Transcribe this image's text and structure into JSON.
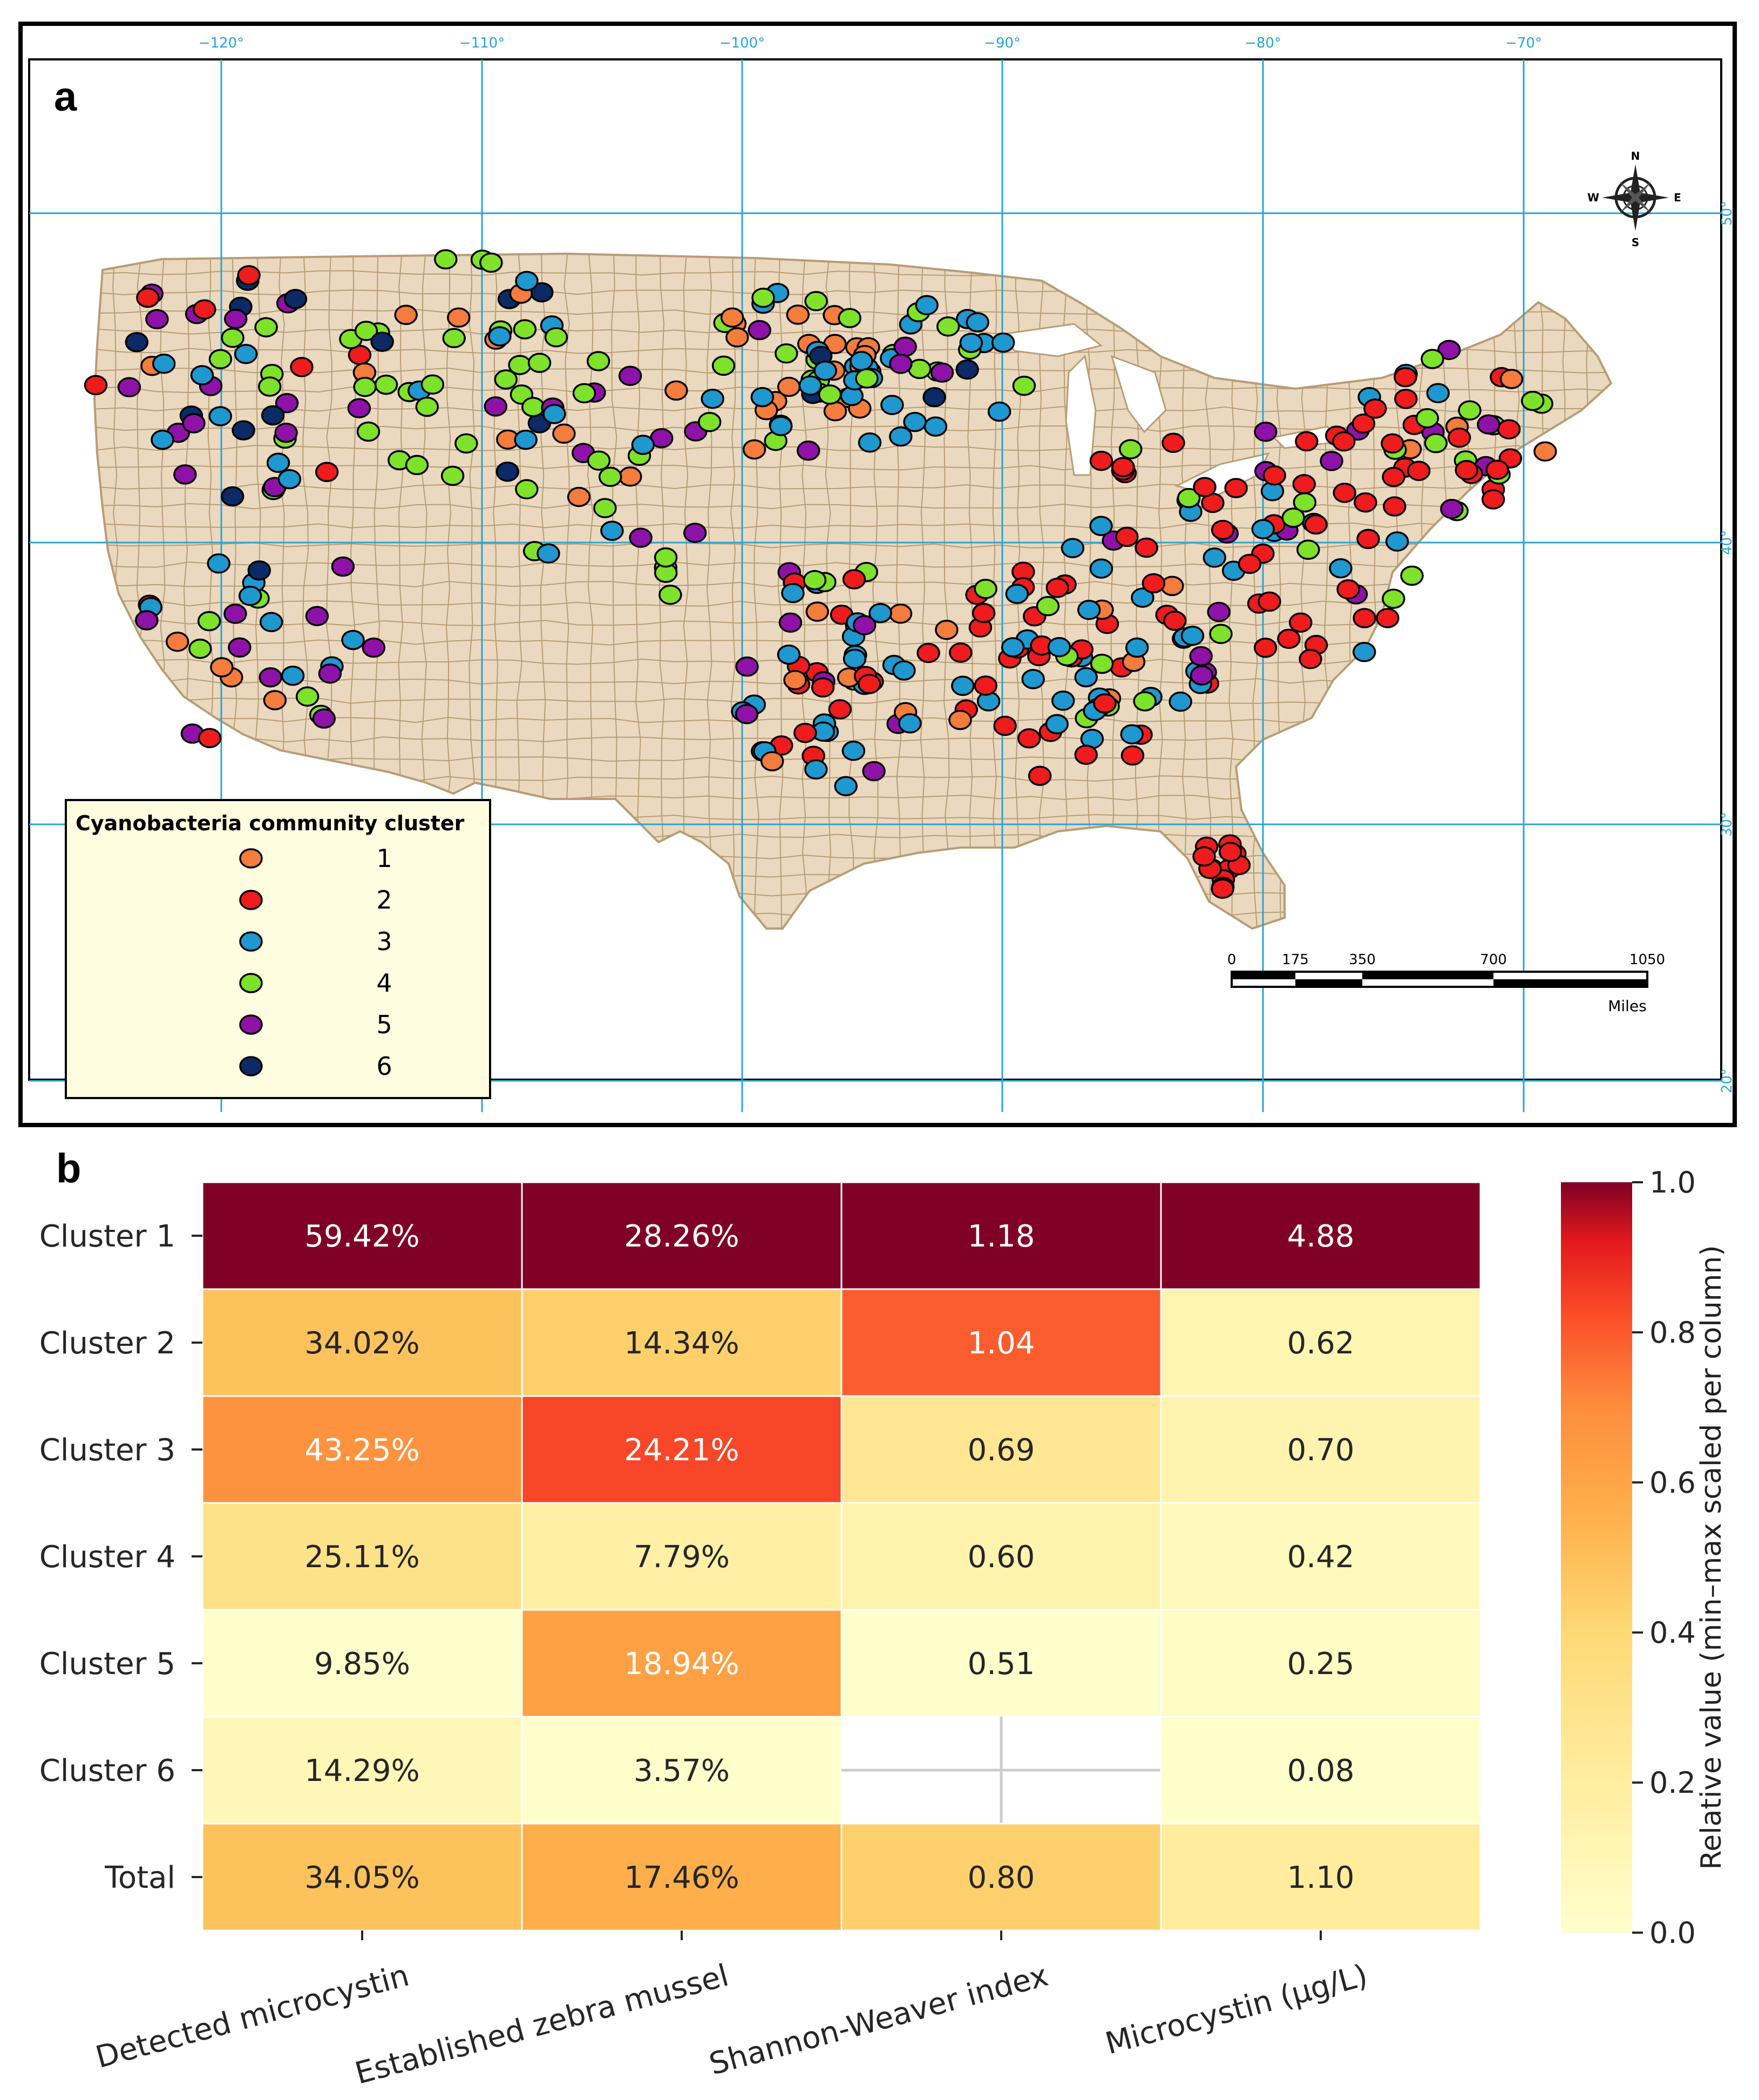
{
  "panel_a": {
    "letter": "a",
    "lon_ticks": [
      "−120°",
      "−110°",
      "−100°",
      "−90°",
      "−80°",
      "−70°"
    ],
    "lat_ticks": [
      "50°",
      "40°",
      "30°",
      "20°"
    ],
    "compass": {
      "n": "N",
      "s": "S",
      "e": "E",
      "w": "W",
      "icon": "compass-rose-icon"
    },
    "scale_bar": {
      "labels": [
        "0",
        "175",
        "350",
        "700",
        "1050"
      ],
      "unit": "Miles"
    },
    "legend": {
      "title": "Cyanobacteria community cluster",
      "items": [
        {
          "label": "1",
          "color": "#f47c3c"
        },
        {
          "label": "2",
          "color": "#ee1c1c"
        },
        {
          "label": "3",
          "color": "#1f97cf"
        },
        {
          "label": "4",
          "color": "#7ee22a"
        },
        {
          "label": "5",
          "color": "#8e12a8"
        },
        {
          "label": "6",
          "color": "#0b2a66"
        }
      ]
    },
    "colors": {
      "land": "#ead9bf",
      "county_line": "#b79d76",
      "grid": "#29a4d4",
      "legend_bg": "#fffde0"
    }
  },
  "chart_data": {
    "type": "heatmap",
    "panel_letter": "b",
    "rows": [
      "Cluster 1",
      "Cluster 2",
      "Cluster 3",
      "Cluster 4",
      "Cluster 5",
      "Cluster 6",
      "Total"
    ],
    "columns": [
      "Detected microcystin",
      "Established zebra mussel",
      "Shannon-Weaver index",
      "Microcystin (µg/L)"
    ],
    "cell_labels": [
      [
        "59.42%",
        "28.26%",
        "1.18",
        "4.88"
      ],
      [
        "34.02%",
        "14.34%",
        "1.04",
        "0.62"
      ],
      [
        "43.25%",
        "24.21%",
        "0.69",
        "0.70"
      ],
      [
        "25.11%",
        "7.79%",
        "0.60",
        "0.42"
      ],
      [
        "9.85%",
        "18.94%",
        "0.51",
        "0.25"
      ],
      [
        "14.29%",
        "3.57%",
        "",
        "0.08"
      ],
      [
        "34.05%",
        "17.46%",
        "0.80",
        "1.10"
      ]
    ],
    "values": [
      [
        59.42,
        28.26,
        1.18,
        4.88
      ],
      [
        34.02,
        14.34,
        1.04,
        0.62
      ],
      [
        43.25,
        24.21,
        0.69,
        0.7
      ],
      [
        25.11,
        7.79,
        0.6,
        0.42
      ],
      [
        9.85,
        18.94,
        0.51,
        0.25
      ],
      [
        14.29,
        3.57,
        null,
        0.08
      ],
      [
        34.05,
        17.46,
        0.8,
        1.1
      ]
    ],
    "colorbar": {
      "label": "Relative value (min–max scaled per column)",
      "range": [
        0.0,
        1.0
      ],
      "ticks": [
        "0.0",
        "0.2",
        "0.4",
        "0.6",
        "0.8",
        "1.0"
      ],
      "colormap": "YlOrRd"
    }
  }
}
